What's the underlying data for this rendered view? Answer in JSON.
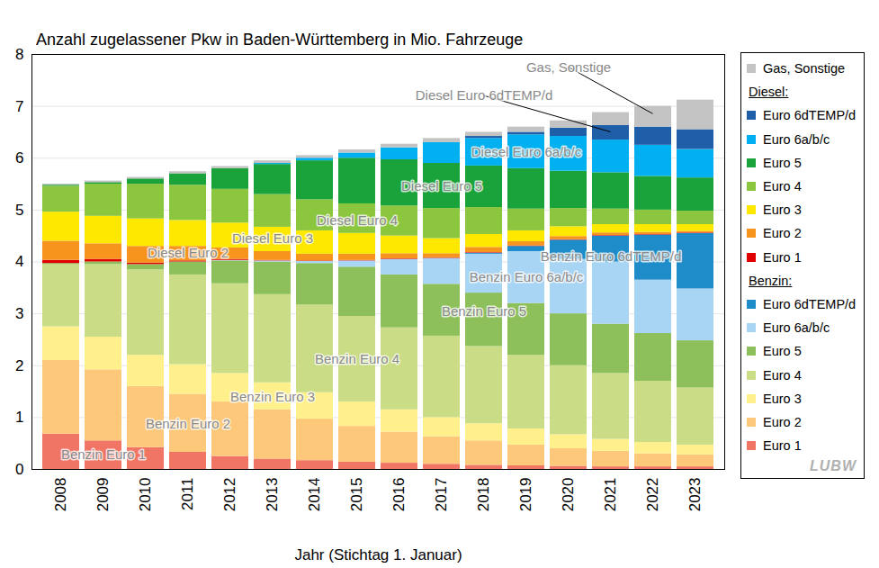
{
  "chart_data": {
    "type": "bar",
    "stacked": true,
    "title": "Anzahl  zugelassener  Pkw  in  Baden-Württemberg  in  Mio. Fahrzeuge",
    "x_label": "Jahr (Stichtag 1. Januar)",
    "logo": "LUBW",
    "categories": [
      "2008",
      "2009",
      "2010",
      "2011",
      "2012",
      "2013",
      "2014",
      "2015",
      "2016",
      "2017",
      "2018",
      "2019",
      "2020",
      "2021",
      "2022",
      "2023"
    ],
    "ylim": [
      0,
      8
    ],
    "yticks": [
      0,
      1,
      2,
      3,
      4,
      5,
      6,
      7,
      8
    ],
    "grid": true,
    "legend": "right",
    "series": [
      {
        "name": "Euro 1",
        "group": "Benzin:",
        "color": "#f07564",
        "values": [
          0.68,
          0.55,
          0.42,
          0.33,
          0.25,
          0.2,
          0.17,
          0.14,
          0.12,
          0.1,
          0.08,
          0.07,
          0.06,
          0.05,
          0.05,
          0.05
        ]
      },
      {
        "name": "Euro 2",
        "group": "Benzin:",
        "color": "#fdc87a",
        "values": [
          1.42,
          1.37,
          1.18,
          1.12,
          1.05,
          0.95,
          0.8,
          0.69,
          0.6,
          0.53,
          0.47,
          0.4,
          0.34,
          0.3,
          0.25,
          0.23
        ]
      },
      {
        "name": "Euro 3",
        "group": "Benzin:",
        "color": "#fff08c",
        "values": [
          0.65,
          0.63,
          0.6,
          0.57,
          0.55,
          0.52,
          0.51,
          0.47,
          0.43,
          0.37,
          0.33,
          0.31,
          0.27,
          0.23,
          0.22,
          0.19
        ]
      },
      {
        "name": "Euro 4",
        "group": "Benzin:",
        "color": "#cadc86",
        "values": [
          1.2,
          1.4,
          1.65,
          1.73,
          1.73,
          1.7,
          1.69,
          1.65,
          1.58,
          1.57,
          1.49,
          1.42,
          1.33,
          1.27,
          1.18,
          1.1
        ]
      },
      {
        "name": "Euro 5",
        "group": "Benzin:",
        "color": "#8dc05a",
        "values": [
          0.02,
          0.05,
          0.1,
          0.25,
          0.44,
          0.63,
          0.8,
          0.95,
          1.02,
          1.0,
          1.03,
          1.0,
          1.0,
          0.95,
          0.92,
          0.91
        ]
      },
      {
        "name": "Euro 6a/b/c",
        "group": "Benzin:",
        "color": "#a8d5f3",
        "values": [
          0,
          0,
          0,
          0,
          0.01,
          0.02,
          0.04,
          0.12,
          0.3,
          0.5,
          0.75,
          1.0,
          1.05,
          1.2,
          1.03,
          1.0
        ]
      },
      {
        "name": "Euro 6dTEMP/d",
        "group": "Benzin:",
        "color": "#1e8cc8",
        "values": [
          0,
          0,
          0,
          0,
          0,
          0,
          0,
          0,
          0,
          0,
          0.02,
          0.1,
          0.37,
          0.5,
          0.87,
          1.07
        ]
      },
      {
        "name": "Euro 1",
        "group": "Diesel:",
        "color": "#e00000",
        "values": [
          0.06,
          0.05,
          0.03,
          0.02,
          0.02,
          0.01,
          0.01,
          0.01,
          0.01,
          0.01,
          0.01,
          0.01,
          0.01,
          0.01,
          0.01,
          0.01
        ]
      },
      {
        "name": "Euro 2",
        "group": "Diesel:",
        "color": "#f7941d",
        "values": [
          0.37,
          0.3,
          0.32,
          0.28,
          0.22,
          0.17,
          0.13,
          0.12,
          0.1,
          0.08,
          0.1,
          0.08,
          0.06,
          0.05,
          0.04,
          0.03
        ]
      },
      {
        "name": "Euro 3",
        "group": "Diesel:",
        "color": "#ffe800",
        "values": [
          0.56,
          0.53,
          0.53,
          0.5,
          0.48,
          0.47,
          0.45,
          0.4,
          0.34,
          0.29,
          0.25,
          0.21,
          0.19,
          0.16,
          0.15,
          0.13
        ]
      },
      {
        "name": "Euro 4",
        "group": "Diesel:",
        "color": "#8cc63f",
        "values": [
          0.5,
          0.62,
          0.67,
          0.68,
          0.65,
          0.63,
          0.6,
          0.57,
          0.58,
          0.58,
          0.52,
          0.42,
          0.35,
          0.3,
          0.28,
          0.26
        ]
      },
      {
        "name": "Euro 5",
        "group": "Diesel:",
        "color": "#1aa33a",
        "values": [
          0.02,
          0.03,
          0.1,
          0.22,
          0.4,
          0.58,
          0.75,
          0.88,
          0.89,
          0.87,
          0.8,
          0.78,
          0.72,
          0.7,
          0.65,
          0.64
        ]
      },
      {
        "name": "Euro 6a/b/c",
        "group": "Diesel:",
        "color": "#00b0f0",
        "values": [
          0,
          0,
          0,
          0,
          0,
          0.02,
          0.05,
          0.1,
          0.23,
          0.4,
          0.53,
          0.65,
          0.67,
          0.63,
          0.6,
          0.55
        ]
      },
      {
        "name": "Euro 6dTEMP/d",
        "group": "Diesel:",
        "color": "#1f5fa8",
        "values": [
          0,
          0,
          0,
          0,
          0,
          0,
          0,
          0,
          0,
          0,
          0.04,
          0.05,
          0.16,
          0.28,
          0.35,
          0.38
        ]
      },
      {
        "name": "Gas, Sonstige",
        "color": "#c3c3c3",
        "values": [
          0.02,
          0.03,
          0.03,
          0.04,
          0.04,
          0.05,
          0.05,
          0.06,
          0.07,
          0.08,
          0.08,
          0.1,
          0.14,
          0.25,
          0.4,
          0.57
        ]
      }
    ],
    "annotations": [
      {
        "text": "Benzin Euro 1",
        "x": "2009",
        "y": 0.28
      },
      {
        "text": "Benzin Euro 2",
        "x": "2011",
        "y": 0.88
      },
      {
        "text": "Benzin Euro 3",
        "x": "2013",
        "y": 1.4
      },
      {
        "text": "Benzin Euro 4",
        "x": "2015",
        "y": 2.12
      },
      {
        "text": "Benzin Euro 5",
        "x": "2018",
        "y": 3.05
      },
      {
        "text": "Benzin Euro 6a/b/c",
        "x": "2019",
        "y": 3.7
      },
      {
        "text": "Benzin Euro 6dTEMP/d",
        "x": "2021",
        "y": 4.1
      },
      {
        "text": "Diesel Euro 2",
        "x": "2011",
        "y": 4.17
      },
      {
        "text": "Diesel Euro 3",
        "x": "2013",
        "y": 4.45
      },
      {
        "text": "Diesel Euro 4",
        "x": "2015",
        "y": 4.8
      },
      {
        "text": "Diesel Euro 5",
        "x": "2017",
        "y": 5.45
      },
      {
        "text": "Diesel Euro 6a/b/c",
        "x": "2019",
        "y": 6.12
      },
      {
        "text": "Diesel Euro 6dTEMP/d",
        "x": "2018",
        "y": 7.2,
        "target": {
          "x": "2021",
          "y": 6.5
        }
      },
      {
        "text": "Gas, Sonstige",
        "x": "2020",
        "y": 7.75,
        "target": {
          "x": "2022",
          "y": 6.85
        }
      }
    ]
  }
}
